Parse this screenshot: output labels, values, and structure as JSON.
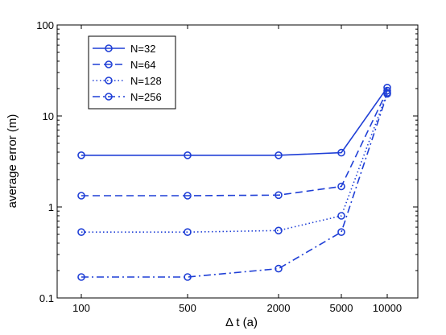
{
  "chart_data": {
    "type": "line",
    "title": "",
    "xlabel": "Δ t  (a)",
    "ylabel": "average error (m)",
    "x_scale": "log",
    "y_scale": "log",
    "ylim": [
      0.1,
      100
    ],
    "x": [
      100,
      500,
      2000,
      5000,
      10000
    ],
    "x_tick_labels": [
      "100",
      "500",
      "2000",
      "5000",
      "10000"
    ],
    "y_ticks": [
      0.1,
      1,
      10,
      100
    ],
    "y_tick_labels": [
      "0.1",
      "1",
      "10",
      "100"
    ],
    "grid": false,
    "legend_position": "top-left",
    "series": [
      {
        "name": "N=32",
        "values": [
          3.7,
          3.7,
          3.7,
          3.95,
          20.5
        ],
        "line_style": "solid",
        "marker": "circle",
        "color": "#1f3fd6"
      },
      {
        "name": "N=64",
        "values": [
          1.33,
          1.33,
          1.35,
          1.68,
          19.0
        ],
        "line_style": "dashed",
        "marker": "circle",
        "color": "#1f3fd6"
      },
      {
        "name": "N=128",
        "values": [
          0.53,
          0.53,
          0.55,
          0.8,
          18.0
        ],
        "line_style": "dotted",
        "marker": "circle",
        "color": "#1f3fd6"
      },
      {
        "name": "N=256",
        "values": [
          0.17,
          0.17,
          0.21,
          0.53,
          17.5
        ],
        "line_style": "dashdot",
        "marker": "circle",
        "color": "#1f3fd6"
      }
    ]
  }
}
